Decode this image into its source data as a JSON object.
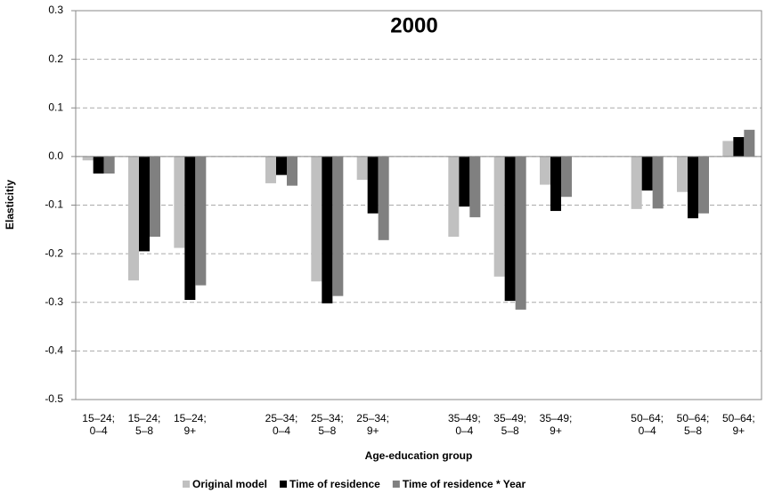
{
  "chart_data": {
    "type": "bar",
    "title": "2000",
    "x_label": "Age-education group",
    "y_label": "Elasticitiy",
    "categories": [
      "15–24; 0–4",
      "15–24; 5–8",
      "15–24; 9+",
      null,
      "25–34; 0–4",
      "25–34; 5–8",
      "25–34; 9+",
      null,
      "35–49; 0–4",
      "35–49; 5–8",
      "35–49; 9+",
      null,
      "50–64; 0–4",
      "50–64; 5–8",
      "50–64; 9+"
    ],
    "series": [
      {
        "name": "Original model",
        "color": "#c0c0c0",
        "values": [
          -0.008,
          -0.255,
          -0.188,
          null,
          -0.055,
          -0.257,
          -0.048,
          null,
          -0.165,
          -0.247,
          -0.058,
          null,
          -0.108,
          -0.073,
          0.032
        ]
      },
      {
        "name": "Time of residence",
        "color": "#000000",
        "values": [
          -0.035,
          -0.195,
          -0.295,
          null,
          -0.038,
          -0.302,
          -0.117,
          null,
          -0.103,
          -0.297,
          -0.112,
          null,
          -0.07,
          -0.127,
          0.04
        ]
      },
      {
        "name": "Time of residence * Year",
        "color": "#808080",
        "values": [
          -0.035,
          -0.165,
          -0.265,
          null,
          -0.06,
          -0.287,
          -0.172,
          null,
          -0.125,
          -0.315,
          -0.083,
          null,
          -0.107,
          -0.117,
          0.055
        ]
      }
    ],
    "ylim": [
      -0.5,
      0.3
    ],
    "yticks": [
      0.3,
      0.2,
      0.1,
      {
        "value": 0,
        "label": "0.0"
      },
      -0.1,
      -0.2,
      -0.3,
      -0.4,
      -0.5
    ],
    "grid": true,
    "legend": "bottom"
  }
}
